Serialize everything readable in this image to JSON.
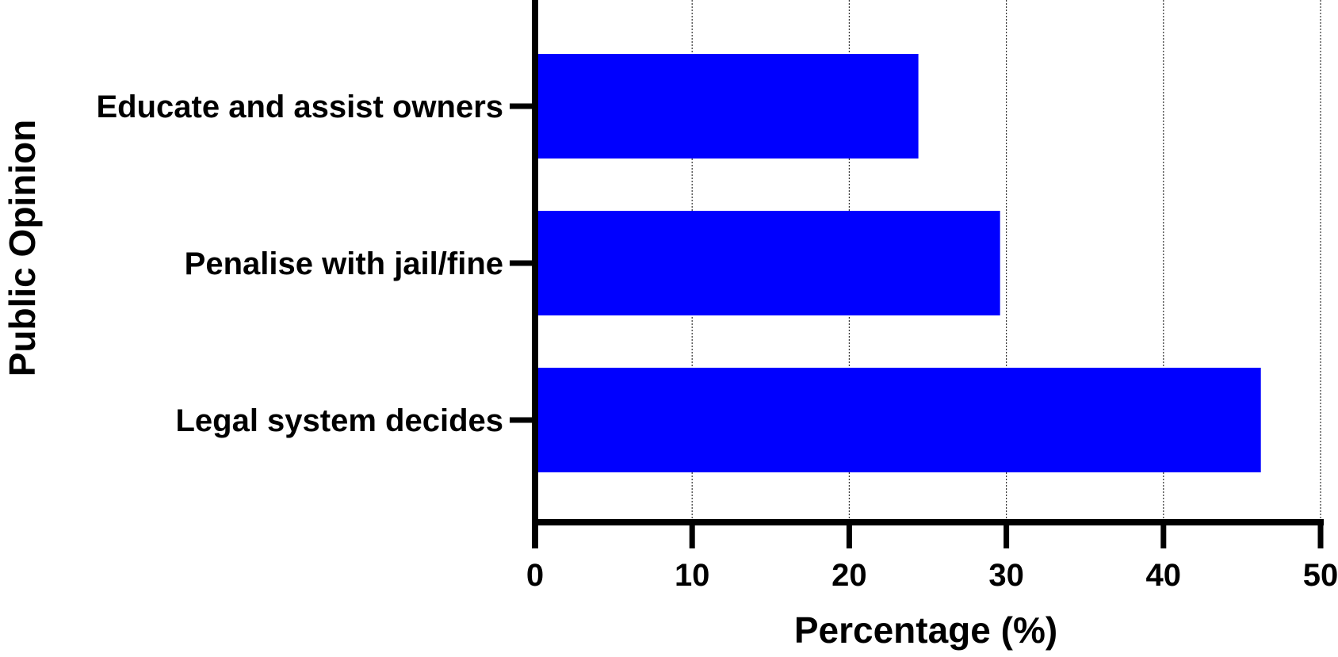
{
  "chart_data": {
    "type": "bar",
    "orientation": "horizontal",
    "title": "",
    "xlabel": "Percentage (%)",
    "ylabel": "Public Opinion",
    "categories": [
      "Educate and assist owners",
      "Penalise with jail/fine",
      "Legal system decides"
    ],
    "values": [
      24.4,
      29.6,
      46.2
    ],
    "xlim": [
      0,
      50
    ],
    "xticks": [
      0,
      10,
      20,
      30,
      40,
      50
    ],
    "xtick_labels": [
      "0",
      "10",
      "20",
      "30",
      "40",
      "50"
    ],
    "grid": "vertical dotted",
    "legend": "none",
    "bar_color": "#0000FF"
  }
}
